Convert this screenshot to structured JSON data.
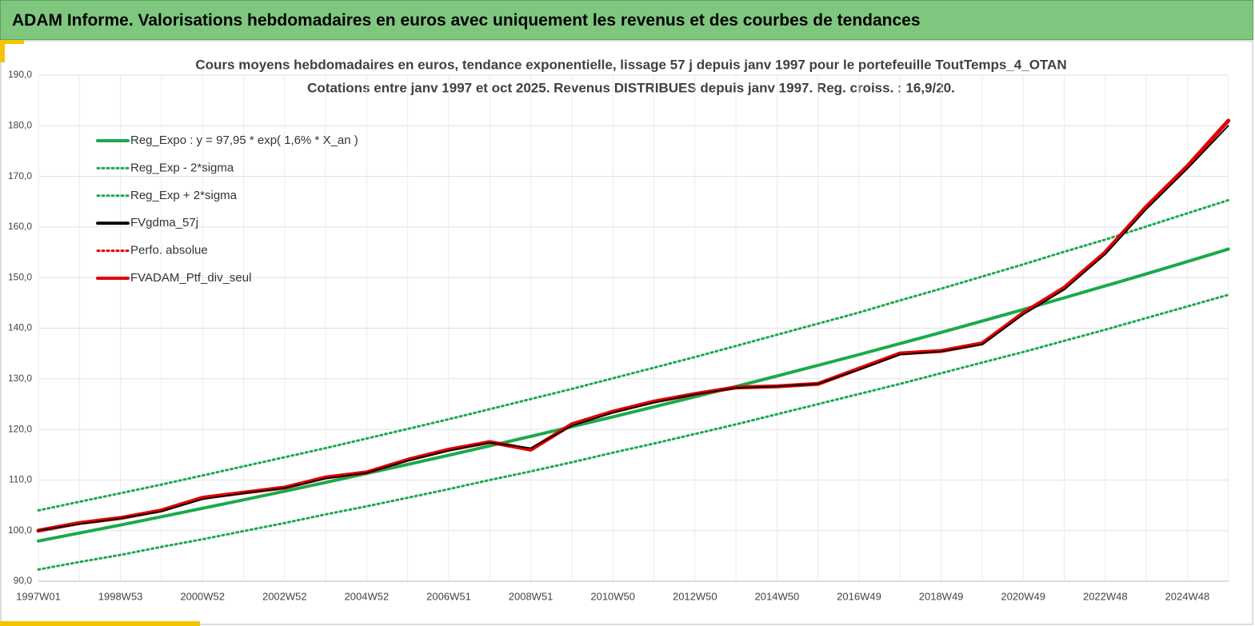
{
  "header": {
    "title": "ADAM Informe. Valorisations hebdomadaires en euros avec uniquement les revenus et des courbes de tendances"
  },
  "chart_data": {
    "type": "line",
    "title": "Cours moyens hebdomadaires  en euros, tendance exponentielle, lissage 57 j depuis janv 1997 pour le portefeuille ToutTemps_4_OTAN",
    "subtitle": "Cotations  entre janv 1997 et oct 2025. Revenus DISTRIBUES  depuis janv 1997. Reg. croiss. : 16,9/20.",
    "categories": [
      "1997W01",
      null,
      "1998W53",
      null,
      "2000W52",
      null,
      "2002W52",
      null,
      "2004W52",
      null,
      "2006W51",
      null,
      "2008W51",
      null,
      "2010W50",
      null,
      "2012W50",
      null,
      "2014W50",
      null,
      "2016W49",
      null,
      "2018W49",
      null,
      "2020W49",
      null,
      "2022W48",
      null,
      "2024W48",
      null
    ],
    "ylim": [
      90,
      190
    ],
    "yticks": [
      {
        "value": 90,
        "label": "90,0"
      },
      {
        "value": 100,
        "label": "100,0"
      },
      {
        "value": 110,
        "label": "110,0"
      },
      {
        "value": 120,
        "label": "120,0"
      },
      {
        "value": 130,
        "label": "130,0"
      },
      {
        "value": 140,
        "label": "140,0"
      },
      {
        "value": 150,
        "label": "150,0"
      },
      {
        "value": 160,
        "label": "160,0"
      },
      {
        "value": 170,
        "label": "170,0"
      },
      {
        "value": 180,
        "label": "180,0"
      },
      {
        "value": 190,
        "label": "190,0"
      }
    ],
    "grid": true,
    "legend": "upper left",
    "series": [
      {
        "name": "Reg_Expo : y = 97,95 * exp( 1,6% *  X_an )",
        "color": "#1aaa4a",
        "style": "solid",
        "values": [
          97.95,
          99.53,
          101.11,
          102.75,
          104.4,
          106.08,
          107.79,
          109.53,
          111.29,
          113.08,
          114.9,
          116.75,
          118.63,
          120.54,
          122.48,
          124.45,
          126.45,
          128.49,
          130.56,
          132.66,
          134.79,
          136.96,
          139.17,
          141.41,
          143.68,
          146.0,
          148.35,
          150.73,
          153.16,
          155.62
        ]
      },
      {
        "name": "Reg_Exp - 2*sigma",
        "color": "#1aaa4a",
        "style": "dotted",
        "values": [
          92.3,
          93.8,
          95.2,
          96.8,
          98.3,
          99.9,
          101.5,
          103.2,
          104.8,
          106.5,
          108.2,
          110.0,
          111.7,
          113.5,
          115.4,
          117.2,
          119.1,
          121.0,
          123.0,
          125.0,
          127.0,
          129.0,
          131.1,
          133.2,
          135.3,
          137.5,
          139.7,
          142.0,
          144.3,
          146.6
        ]
      },
      {
        "name": "Reg_Exp + 2*sigma",
        "color": "#1aaa4a",
        "style": "dotted",
        "values": [
          104.0,
          105.7,
          107.4,
          109.1,
          110.9,
          112.7,
          114.5,
          116.3,
          118.2,
          120.1,
          122.0,
          124.0,
          126.0,
          128.0,
          130.1,
          132.2,
          134.3,
          136.5,
          138.7,
          140.9,
          143.1,
          145.5,
          147.8,
          150.2,
          152.6,
          155.1,
          157.5,
          160.1,
          162.7,
          165.3
        ]
      },
      {
        "name": "FVgdma_57j",
        "color": "#000000",
        "style": "solid",
        "values": [
          100,
          101.3,
          102.4,
          103.8,
          106.2,
          107.4,
          108.4,
          110.3,
          111.4,
          113.8,
          115.8,
          117.4,
          116.3,
          120.7,
          123.3,
          125.3,
          126.9,
          128.2,
          128.5,
          129.0,
          131.8,
          134.8,
          135.4,
          136.8,
          142.7,
          147.6,
          154.6,
          163.5,
          171.5,
          180
        ]
      },
      {
        "name": "Perfo. absolue",
        "color": "#e00000",
        "style": "dotted",
        "values": [
          100,
          101.5,
          102.5,
          104,
          106.5,
          107.5,
          108.5,
          110.5,
          111.5,
          114,
          116,
          117.5,
          116,
          121,
          123.5,
          125.5,
          127,
          128.3,
          128.5,
          129,
          132,
          135,
          135.5,
          137,
          143,
          148,
          155,
          164,
          172,
          181
        ]
      },
      {
        "name": "FVADAM_Ptf_div_seul",
        "color": "#e00000",
        "style": "solid",
        "values": [
          100,
          101.5,
          102.5,
          104,
          106.5,
          107.5,
          108.5,
          110.5,
          111.5,
          114,
          116,
          117.5,
          116,
          121,
          123.5,
          125.5,
          127,
          128.3,
          128.5,
          129,
          132,
          135,
          135.5,
          137,
          143,
          148,
          155,
          164,
          172,
          181
        ]
      }
    ]
  }
}
